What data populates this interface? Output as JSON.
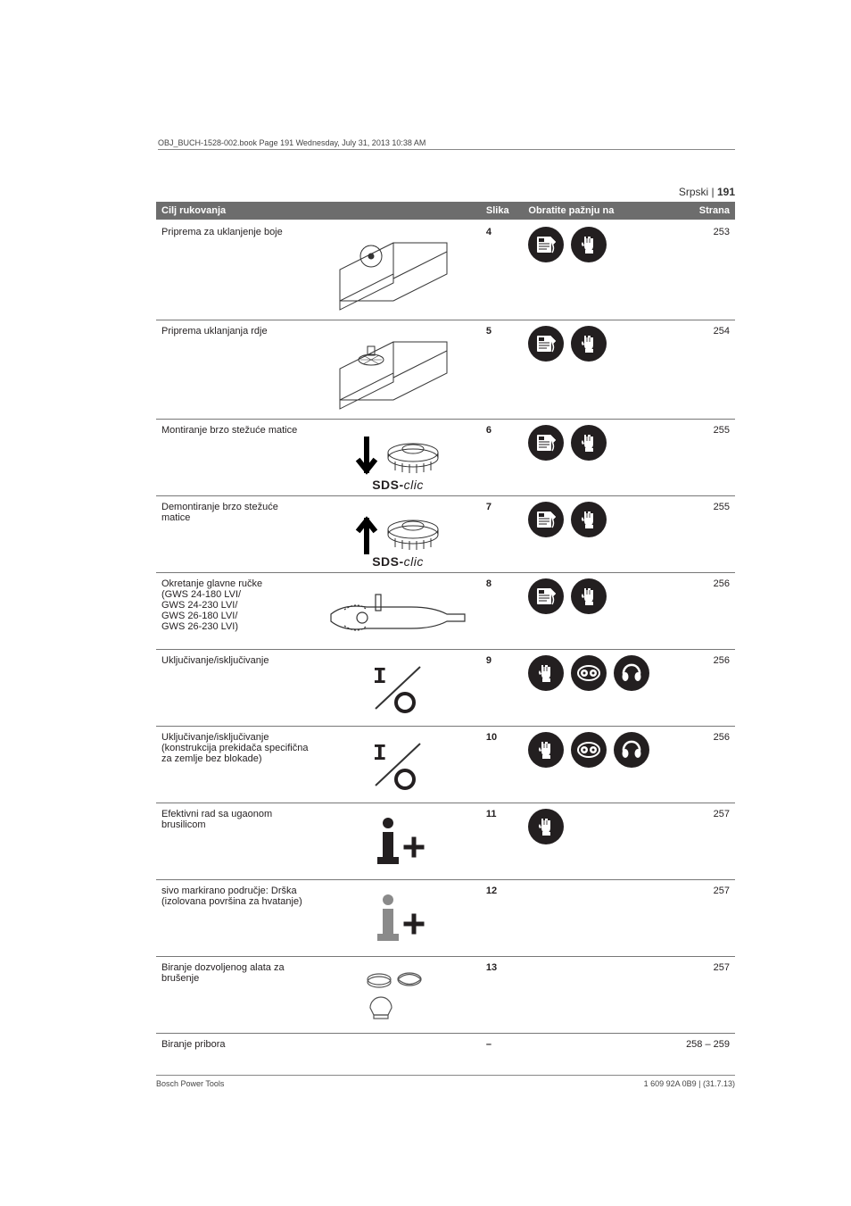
{
  "page": {
    "lang_label": "Srpski",
    "page_number": "191",
    "book_header": "OBJ_BUCH-1528-002.book  Page 191  Wednesday, July 31, 2013  10:38 AM"
  },
  "table": {
    "headers": {
      "cilj": "Cilj rukovanja",
      "slika": "Slika",
      "attn": "Obratite pažnju na",
      "strana": "Strana"
    },
    "rows": [
      {
        "desc": "Priprema za uklanjenje boje",
        "fig": "4",
        "page": "253",
        "icons": [
          "manual",
          "gloves"
        ],
        "ill": "ibeam-sand",
        "tall": true
      },
      {
        "desc": "Priprema uklanjanja rdje",
        "fig": "5",
        "page": "254",
        "icons": [
          "manual",
          "gloves"
        ],
        "ill": "ibeam-wire",
        "tall": true
      },
      {
        "desc": "Montiranje brzo stežuće matice",
        "fig": "6",
        "page": "255",
        "icons": [
          "manual",
          "gloves"
        ],
        "ill": "sds-down"
      },
      {
        "desc": "Demontiranje brzo stežuće matice",
        "fig": "7",
        "page": "255",
        "icons": [
          "manual",
          "gloves"
        ],
        "ill": "sds-up"
      },
      {
        "desc": "Okretanje glavne ručke\n(GWS 24-180 LVI/\nGWS 24-230 LVI/\nGWS 26-180 LVI/\nGWS 26-230 LVI)",
        "fig": "8",
        "page": "256",
        "icons": [
          "manual",
          "gloves"
        ],
        "ill": "grinder"
      },
      {
        "desc": "Uključivanje/isključivanje",
        "fig": "9",
        "page": "256",
        "icons": [
          "gloves",
          "goggles",
          "earmuffs"
        ],
        "ill": "switch"
      },
      {
        "desc": "Uključivanje/isključivanje (konstrukcija prekidača specifična za zemlje bez blokade)",
        "fig": "10",
        "page": "256",
        "icons": [
          "gloves",
          "goggles",
          "earmuffs"
        ],
        "ill": "switch"
      },
      {
        "desc": "Efektivni rad sa ugaonom brusilicom",
        "fig": "11",
        "page": "257",
        "icons": [
          "gloves"
        ],
        "ill": "info"
      },
      {
        "desc": "sivo markirano područje: Drška (izolovana površina za hvatanje)",
        "fig": "12",
        "page": "257",
        "icons": [],
        "ill": "info-grey"
      },
      {
        "desc": "Biranje dozvoljenog alata za brušenje",
        "fig": "13",
        "page": "257",
        "icons": [],
        "ill": "accessories"
      },
      {
        "desc": "Biranje pribora",
        "fig": "–",
        "page": "258 – 259",
        "icons": [],
        "ill": "none"
      }
    ]
  },
  "footer": {
    "left": "Bosch Power Tools",
    "right": "1 609 92A 0B9 | (31.7.13)"
  },
  "style": {
    "header_bg": "#6d6d6d",
    "header_fg": "#ffffff",
    "text_color": "#231f20",
    "rule_color": "#777777",
    "icon_fill": "#231f20",
    "icon_stroke": "#ffffff"
  }
}
